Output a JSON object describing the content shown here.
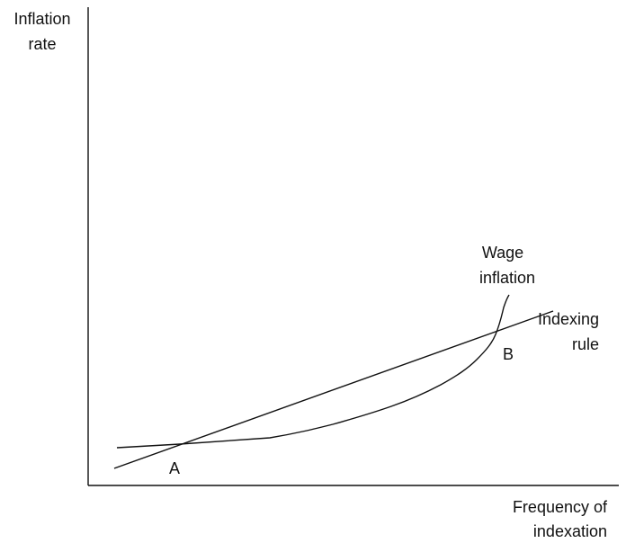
{
  "y_axis_label": [
    "Inflation",
    "rate"
  ],
  "x_axis_label": [
    "Frequency of",
    "indexation"
  ],
  "curves": [
    {
      "label": [
        "Wage",
        "inflation"
      ]
    },
    {
      "label": [
        "Indexing",
        "rule"
      ]
    }
  ],
  "points": [
    {
      "label": "A"
    },
    {
      "label": "B"
    }
  ]
}
